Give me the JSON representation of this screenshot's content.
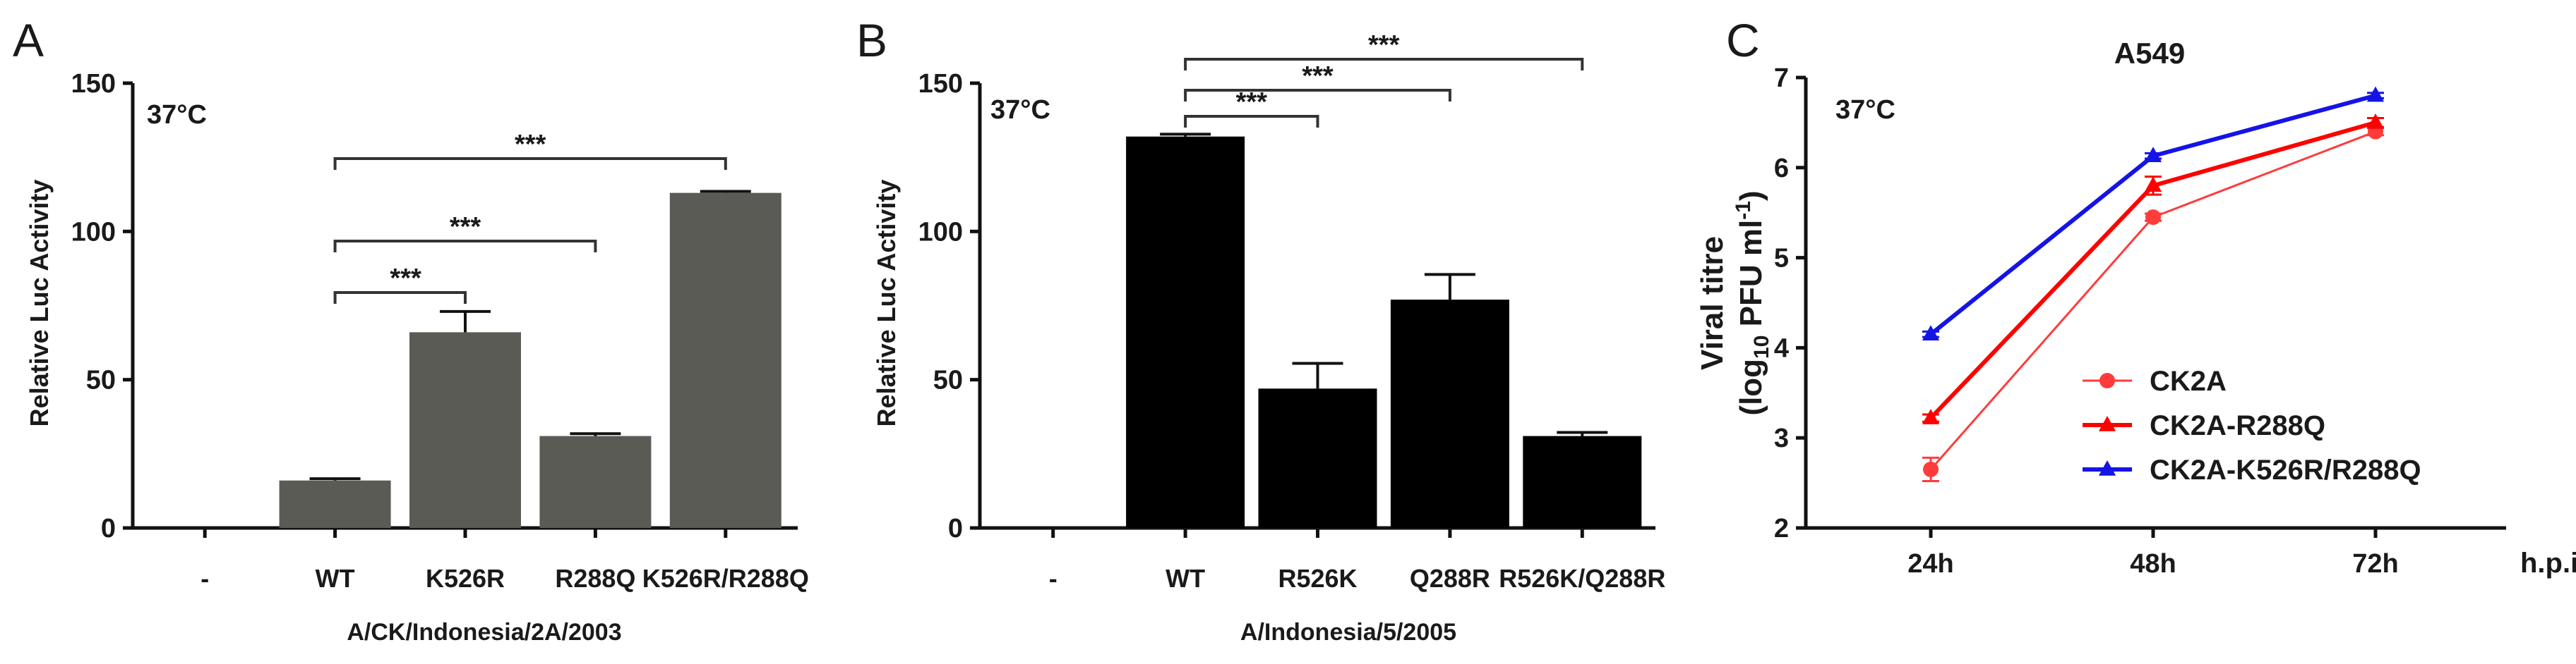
{
  "panels": {
    "a": {
      "letter": "A",
      "temp": "37°C",
      "ylabel": "Relative Luc Activity",
      "xlabel": "A/CK/Indonesia/2A/2003"
    },
    "b": {
      "letter": "B",
      "temp": "37°C",
      "ylabel": "Relative Luc Activity",
      "xlabel": "A/Indonesia/5/2005"
    },
    "c": {
      "letter": "C",
      "temp": "37°C",
      "title": "A549",
      "ylabel_line1": "Viral titre",
      "ylabel_line2_prefix": "(log",
      "ylabel_line2_sub": "10",
      "ylabel_line2_rest": " PFU ml",
      "ylabel_line2_sup": "-1",
      "ylabel_line2_close": ")",
      "x_extra_label": "h.p.i."
    }
  },
  "chart_data": [
    {
      "type": "bar",
      "panel": "A",
      "color": "#5b5b55",
      "categories": [
        "-",
        "WT",
        "K526R",
        "R288Q",
        "K526R/R288Q"
      ],
      "values": [
        0,
        16,
        66,
        31,
        113
      ],
      "errors": [
        0,
        0.6,
        7,
        0.8,
        0.5
      ],
      "ylim": [
        0,
        150
      ],
      "yticks": [
        0,
        50,
        100,
        150
      ],
      "significance": [
        {
          "from": 1,
          "to": 2,
          "label": "***"
        },
        {
          "from": 1,
          "to": 3,
          "label": "***"
        },
        {
          "from": 1,
          "to": 4,
          "label": "***"
        }
      ]
    },
    {
      "type": "bar",
      "panel": "B",
      "color": "#000000",
      "categories": [
        "-",
        "WT",
        "R526K",
        "Q288R",
        "R526K/Q288R"
      ],
      "values": [
        0,
        132,
        47,
        77,
        31
      ],
      "errors": [
        0,
        0.8,
        8.5,
        8.5,
        1.2
      ],
      "ylim": [
        0,
        150
      ],
      "yticks": [
        0,
        50,
        100,
        150
      ],
      "significance": [
        {
          "from": 1,
          "to": 2,
          "label": "***"
        },
        {
          "from": 1,
          "to": 3,
          "label": "***"
        },
        {
          "from": 1,
          "to": 4,
          "label": "***"
        }
      ]
    },
    {
      "type": "line",
      "panel": "C",
      "categories": [
        "24h",
        "48h",
        "72h"
      ],
      "ylim": [
        2,
        7
      ],
      "yticks": [
        2,
        3,
        4,
        5,
        6,
        7
      ],
      "legend_position": "center-right",
      "series": [
        {
          "name": "CK2A",
          "color": "#ff3b3b",
          "marker": "circle",
          "values": [
            2.65,
            5.45,
            6.4
          ],
          "errors": [
            0.13,
            0.04,
            0.04
          ]
        },
        {
          "name": "CK2A-R288Q",
          "color": "#ff0000",
          "marker": "triangle",
          "values": [
            3.22,
            5.8,
            6.5
          ],
          "errors": [
            0.04,
            0.1,
            0.05
          ]
        },
        {
          "name": "CK2A-K526R/R288Q",
          "color": "#1414e6",
          "marker": "triangle",
          "values": [
            4.15,
            6.13,
            6.8
          ],
          "errors": [
            0.03,
            0.03,
            0.03
          ]
        }
      ]
    }
  ]
}
